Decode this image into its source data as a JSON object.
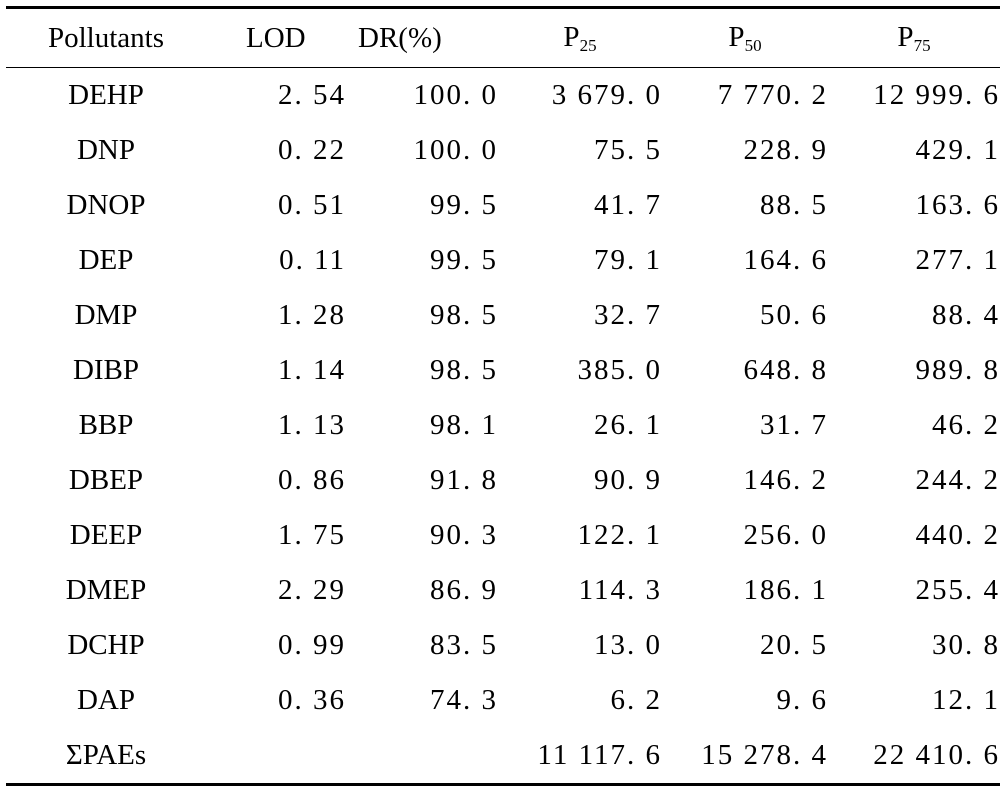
{
  "table": {
    "headers": {
      "pollutants": "Pollutants",
      "lod": "LOD",
      "dr": "DR(%)",
      "p25_base": "P",
      "p25_sub": "25",
      "p50_base": "P",
      "p50_sub": "50",
      "p75_base": "P",
      "p75_sub": "75"
    },
    "rows": [
      {
        "name": "DEHP",
        "lod": "2. 54",
        "dr": "100. 0",
        "p25": "3 679. 0",
        "p50": "7 770. 2",
        "p75": "12 999. 6"
      },
      {
        "name": "DNP",
        "lod": "0. 22",
        "dr": "100. 0",
        "p25": "75. 5",
        "p50": "228. 9",
        "p75": "429. 1"
      },
      {
        "name": "DNOP",
        "lod": "0. 51",
        "dr": "99. 5",
        "p25": "41. 7",
        "p50": "88. 5",
        "p75": "163. 6"
      },
      {
        "name": "DEP",
        "lod": "0. 11",
        "dr": "99. 5",
        "p25": "79. 1",
        "p50": "164. 6",
        "p75": "277. 1"
      },
      {
        "name": "DMP",
        "lod": "1. 28",
        "dr": "98. 5",
        "p25": "32. 7",
        "p50": "50. 6",
        "p75": "88. 4"
      },
      {
        "name": "DIBP",
        "lod": "1. 14",
        "dr": "98. 5",
        "p25": "385. 0",
        "p50": "648. 8",
        "p75": "989. 8"
      },
      {
        "name": "BBP",
        "lod": "1. 13",
        "dr": "98. 1",
        "p25": "26. 1",
        "p50": "31. 7",
        "p75": "46. 2"
      },
      {
        "name": "DBEP",
        "lod": "0. 86",
        "dr": "91. 8",
        "p25": "90. 9",
        "p50": "146. 2",
        "p75": "244. 2"
      },
      {
        "name": "DEEP",
        "lod": "1. 75",
        "dr": "90. 3",
        "p25": "122. 1",
        "p50": "256. 0",
        "p75": "440. 2"
      },
      {
        "name": "DMEP",
        "lod": "2. 29",
        "dr": "86. 9",
        "p25": "114. 3",
        "p50": "186. 1",
        "p75": "255. 4"
      },
      {
        "name": "DCHP",
        "lod": "0. 99",
        "dr": "83. 5",
        "p25": "13. 0",
        "p50": "20. 5",
        "p75": "30. 8"
      },
      {
        "name": "DAP",
        "lod": "0. 36",
        "dr": "74. 3",
        "p25": "6. 2",
        "p50": "9. 6",
        "p75": "12. 1"
      },
      {
        "name": "ΣPAEs",
        "lod": "",
        "dr": "",
        "p25": "11 117. 6",
        "p50": "15 278. 4",
        "p75": "22 410. 6"
      }
    ]
  }
}
